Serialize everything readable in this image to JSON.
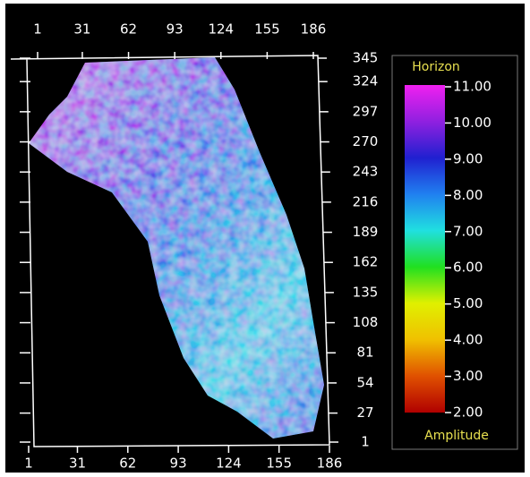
{
  "chart_data": {
    "type": "heatmap",
    "xticks": [
      1,
      31,
      62,
      93,
      124,
      155,
      186
    ],
    "xlim": [
      1,
      186
    ],
    "yticks": [
      1,
      27,
      54,
      81,
      108,
      135,
      162,
      189,
      216,
      243,
      270,
      297,
      324,
      345
    ],
    "ylim": [
      1,
      345
    ],
    "colorbar": {
      "title": "Horizon",
      "label": "Amplitude",
      "lim": [
        2,
        11
      ],
      "ticks": [
        {
          "value": 2,
          "label": "2.00"
        },
        {
          "value": 3,
          "label": "3.00"
        },
        {
          "value": 4,
          "label": "4.00"
        },
        {
          "value": 5,
          "label": "5.00"
        },
        {
          "value": 6,
          "label": "6.00"
        },
        {
          "value": 7,
          "label": "7.00"
        },
        {
          "value": 8,
          "label": "8.00"
        },
        {
          "value": 9,
          "label": "9.00"
        },
        {
          "value": 10,
          "label": "10.00"
        },
        {
          "value": 11,
          "label": "11.00"
        }
      ],
      "colors": [
        "#b00000",
        "#e05000",
        "#f0c000",
        "#e0f000",
        "#20e020",
        "#20e0e0",
        "#2080f0",
        "#2020d0",
        "#9020e0",
        "#f020f0"
      ]
    }
  }
}
